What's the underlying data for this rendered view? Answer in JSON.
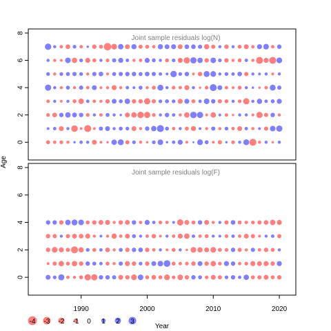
{
  "colors": {
    "negative": "#ff0000",
    "positive": "#0000ff",
    "bubble_opacity": 0.5,
    "panel_border": "#000000",
    "title_color": "#808080"
  },
  "chart_data": {
    "type": "scatter",
    "subtype": "bubble",
    "years": [
      1985,
      1986,
      1987,
      1988,
      1989,
      1990,
      1991,
      1992,
      1993,
      1994,
      1995,
      1996,
      1997,
      1998,
      1999,
      2000,
      2001,
      2002,
      2003,
      2004,
      2005,
      2006,
      2007,
      2008,
      2009,
      2010,
      2011,
      2012,
      2013,
      2014,
      2015,
      2016,
      2017,
      2018,
      2019,
      2020
    ],
    "xlabel": "Year",
    "ylabel": "Age",
    "xlim": [
      1982,
      2022.5
    ],
    "x_ticks": [
      1990,
      2000,
      2010,
      2020
    ],
    "y_ticks": [
      0,
      2,
      4,
      6,
      8
    ],
    "panels": [
      {
        "title": "Joint sample residuals log(N)",
        "ylim": [
          -1.3,
          8.3
        ],
        "ages": [
          0,
          1,
          2,
          3,
          4,
          5,
          6,
          7
        ],
        "residuals": [
          [
            -0.8,
            -0.6,
            -0.7,
            -0.5,
            0.3,
            0.6,
            0.5,
            -1.2,
            -0.4,
            -0.3,
            1.5,
            1.8,
            -0.9,
            0.7,
            -0.5,
            -0.3,
            0.7,
            1.6,
            0.3,
            0.6,
            1.3,
            -0.4,
            0.2,
            1.7,
            0.8,
            -0.4,
            -0.9,
            0.3,
            -0.7,
            0.5,
            1.8,
            -2.5,
            -0.5,
            0.5,
            -0.3,
            0.5
          ],
          [
            0.4,
            0.6,
            -1.2,
            0.5,
            -2.2,
            -0.4,
            -2.5,
            -0.4,
            0.9,
            1.2,
            0.5,
            0.8,
            0.7,
            -1.2,
            -0.5,
            1.0,
            1.5,
            2.5,
            0.8,
            -0.6,
            0.5,
            -0.8,
            -1.3,
            0.4,
            -0.5,
            0.9,
            -0.5,
            0.7,
            -0.6,
            -1.2,
            0.6,
            -0.5,
            0.4,
            -0.9,
            1.6,
            2.0
          ],
          [
            -0.7,
            -1.1,
            1.0,
            1.5,
            1.2,
            1.0,
            -0.7,
            0.5,
            -0.6,
            0.8,
            0.5,
            0.3,
            -1.2,
            -1.5,
            -2.2,
            -2.0,
            -0.7,
            0.5,
            1.0,
            0.6,
            -0.5,
            -1.5,
            2.2,
            2.0,
            -0.4,
            -1.5,
            0.4,
            -0.6,
            -0.3,
            0.5,
            0.5,
            -0.4,
            -2.0,
            -0.9,
            1.0,
            -0.5
          ],
          [
            -0.6,
            0.5,
            -0.4,
            0.5,
            -0.8,
            -1.5,
            0.6,
            -0.6,
            -0.5,
            -1.0,
            1.2,
            0.8,
            1.5,
            -1.0,
            -1.0,
            -2.0,
            -0.9,
            0.7,
            0.8,
            0.7,
            -1.3,
            1.3,
            -0.8,
            0.6,
            1.6,
            1.0,
            -0.9,
            -0.8,
            0.5,
            -0.7,
            -2.0,
            0.5,
            1.4,
            0.6,
            0.8,
            1.3
          ],
          [
            2.0,
            0.5,
            -0.5,
            0.8,
            -0.5,
            0.9,
            -0.6,
            1.2,
            -0.4,
            -0.5,
            -1.3,
            -0.5,
            0.6,
            0.4,
            0.8,
            -0.5,
            -0.8,
            1.8,
            0.5,
            -0.7,
            -0.6,
            -1.3,
            0.5,
            -0.3,
            -0.7,
            2.5,
            1.2,
            -0.6,
            -0.4,
            -0.8,
            0.5,
            0.3,
            -0.3,
            -0.6,
            1.8,
            0.9
          ],
          [
            0.7,
            -0.5,
            0.7,
            0.8,
            0.9,
            0.7,
            -0.5,
            0.9,
            1.1,
            -0.4,
            0.8,
            0.9,
            1.0,
            1.0,
            0.8,
            1.1,
            0.9,
            0.6,
            0.4,
            2.1,
            0.7,
            1.0,
            -0.4,
            -1.0,
            1.8,
            1.7,
            0.5,
            0.7,
            0.6,
            1.1,
            -0.9,
            0.5,
            0.4,
            0.5,
            -0.4,
            0.5
          ],
          [
            0.5,
            -0.5,
            -0.4,
            1.6,
            -1.5,
            0.7,
            -1.3,
            -0.8,
            0.5,
            -0.7,
            0.9,
            1.3,
            0.6,
            -0.5,
            -0.6,
            1.3,
            0.8,
            0.5,
            -0.8,
            0.7,
            -1.3,
            -2.0,
            2.0,
            1.5,
            -1.0,
            1.6,
            0.7,
            -1.0,
            -0.5,
            -0.8,
            0.6,
            -0.5,
            -2.5,
            -1.3,
            -2.5,
            1.7
          ],
          [
            2.1,
            0.5,
            -0.6,
            -1.1,
            0.7,
            -0.6,
            0.3,
            -1.0,
            -0.8,
            -2.8,
            -1.7,
            1.5,
            -1.2,
            1.4,
            -0.9,
            -0.8,
            -0.6,
            1.4,
            1.2,
            1.3,
            -1.2,
            1.1,
            1.1,
            0.9,
            -1.4,
            -0.9,
            0.5,
            -1.0,
            0.5,
            -0.8,
            -1.2,
            -0.6,
            1.3,
            1.6,
            -0.6,
            1.0
          ]
        ]
      },
      {
        "title": "Joint sample residuals log(F)",
        "ylim": [
          -1.3,
          8.3
        ],
        "ages": [
          0,
          1,
          2,
          3,
          4
        ],
        "residuals": [
          [
            1.2,
            0.7,
            1.9,
            -0.6,
            -0.5,
            -0.8,
            -2.0,
            -2.0,
            1.0,
            1.0,
            0.9,
            -1.2,
            -1.0,
            -1.7,
            1.6,
            -0.8,
            -1.1,
            -0.8,
            -1.7,
            -0.7,
            -1.6,
            -1.0,
            1.0,
            0.8,
            -0.7,
            -1.2,
            -0.9,
            0.7,
            1.0,
            0.6,
            1.5,
            -0.8,
            -0.9,
            -1.2,
            -0.8,
            -1.0
          ],
          [
            -0.4,
            -0.9,
            -1.5,
            -0.8,
            -1.5,
            -1.0,
            1.0,
            0.8,
            0.6,
            -0.8,
            -0.5,
            0.9,
            -1.3,
            -1.0,
            0.7,
            -1.0,
            1.2,
            1.6,
            2.3,
            -0.8,
            -0.6,
            -0.7,
            -1.0,
            1.2,
            -1.0,
            -1.5,
            -0.7,
            1.3,
            1.0,
            -0.6,
            -0.7,
            -1.3,
            -1.2,
            -1.3,
            -1.0,
            1.3
          ],
          [
            -1.0,
            -1.7,
            -1.3,
            -0.9,
            -2.5,
            -1.4,
            0.7,
            -0.8,
            0.6,
            -1.1,
            -0.5,
            0.8,
            -1.0,
            1.0,
            1.1,
            -1.0,
            -0.6,
            0.5,
            -0.4,
            -0.8,
            0.5,
            -0.3,
            -1.6,
            -1.4,
            -1.2,
            -1.6,
            -0.8,
            -0.7,
            1.0,
            -0.9,
            -0.5,
            0.9,
            -0.6,
            -1.0,
            -0.8,
            0.5
          ],
          [
            -1.0,
            -0.9,
            0.5,
            -0.9,
            -1.2,
            -1.1,
            -1.3,
            -0.5,
            0.4,
            -0.5,
            -1.4,
            -0.6,
            -1.2,
            0.8,
            0.5,
            -0.6,
            -1.0,
            -0.4,
            0.5,
            -0.6,
            -1.3,
            -1.5,
            0.6,
            -0.6,
            -0.8,
            0.5,
            0.4,
            -0.7,
            0.6,
            -0.6,
            -1.2,
            -0.9,
            -0.4,
            0.5,
            0.6,
            -0.9
          ],
          [
            1.0,
            1.0,
            -1.0,
            1.5,
            1.8,
            1.6,
            -0.8,
            -1.0,
            -1.2,
            -1.3,
            -0.5,
            -1.0,
            -1.2,
            1.0,
            -0.6,
            1.3,
            0.6,
            -0.7,
            -0.6,
            0.4,
            -2.0,
            -1.2,
            -0.8,
            1.0,
            -1.2,
            -0.5,
            0.5,
            -0.9,
            1.1,
            -0.8,
            -0.6,
            -0.7,
            -0.9,
            -1.1,
            -1.5,
            -1.3
          ]
        ]
      }
    ],
    "legend": {
      "values": [
        -4,
        -3,
        -2,
        -1,
        0,
        1,
        2,
        3
      ],
      "labels": [
        "-4",
        "-3",
        "-2",
        "-1",
        "0",
        "1",
        "2",
        "3"
      ],
      "placement": "bottom-left"
    }
  }
}
